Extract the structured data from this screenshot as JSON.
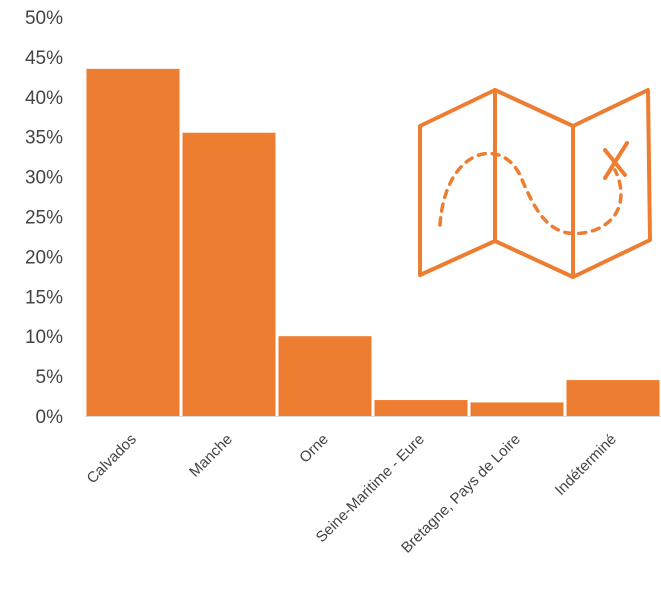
{
  "colors": {
    "bar": "#ED7D31",
    "axis": "#D9D9D9",
    "text": "#444444"
  },
  "icon": "treasure-map-icon",
  "chart_data": {
    "type": "bar",
    "categories": [
      "Calvados",
      "Manche",
      "Orne",
      "Seine-Maritime - Eure",
      "Bretagne, Pays de Loire",
      "Indéterminé"
    ],
    "values": [
      43.5,
      35.5,
      10,
      2,
      1.7,
      4.5
    ],
    "ylim": [
      0,
      50
    ],
    "yticks": [
      0,
      5,
      10,
      15,
      20,
      25,
      30,
      35,
      40,
      45,
      50
    ],
    "ytick_labels": [
      "0%",
      "5%",
      "10%",
      "15%",
      "20%",
      "25%",
      "30%",
      "35%",
      "40%",
      "45%",
      "50%"
    ],
    "title": "",
    "xlabel": "",
    "ylabel": "",
    "grid": false,
    "legend": "none"
  }
}
